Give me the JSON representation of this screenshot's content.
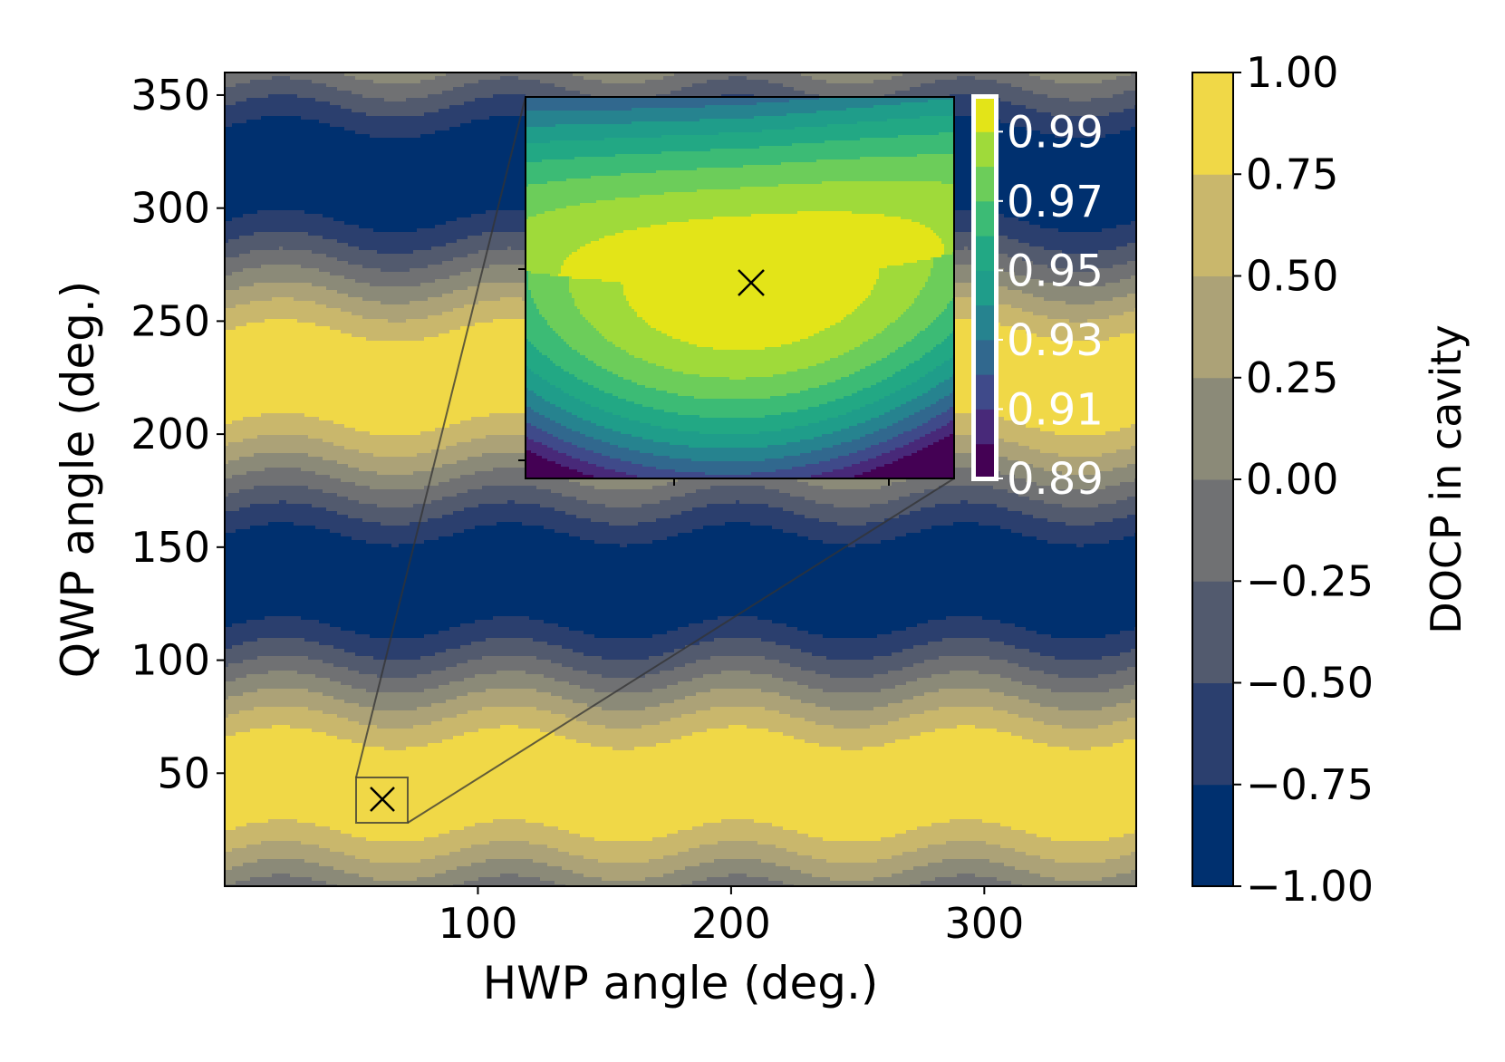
{
  "chart_data": [
    {
      "type": "heatmap",
      "subtype": "filled-contour",
      "xlabel": "HWP angle (deg.)",
      "ylabel": "QWP angle (deg.)",
      "xlim": [
        0,
        360
      ],
      "ylim": [
        0,
        360
      ],
      "xticks": [
        100,
        200,
        300
      ],
      "xtick_labels": [
        "100",
        "200",
        "300"
      ],
      "yticks": [
        50,
        100,
        150,
        200,
        250,
        300,
        350
      ],
      "ytick_labels": [
        "50",
        "100",
        "150",
        "200",
        "250",
        "300",
        "350"
      ],
      "function": "DOCP = sin(2 * QWP) modulated by HWP (period 90 deg.)",
      "levels": [
        -1.0,
        -0.75,
        -0.5,
        -0.25,
        0.0,
        0.25,
        0.5,
        0.75,
        1.0
      ],
      "colormap": "cividis",
      "colors": [
        "#00306f",
        "#2b3f6e",
        "#525a6e",
        "#707173",
        "#8b8a78",
        "#aca277",
        "#c9b76c",
        "#f0d847"
      ],
      "colorbar": {
        "label": "DOCP in cavity",
        "ticks": [
          1.0,
          0.75,
          0.5,
          0.25,
          0.0,
          -0.25,
          -0.5,
          -0.75,
          -1.0
        ],
        "tick_labels": [
          "1.00",
          "0.75",
          "0.50",
          "0.25",
          "0.00",
          "−0.25",
          "−0.50",
          "−0.75",
          "−1.00"
        ]
      },
      "marker": {
        "symbol": "x",
        "hwp": 62,
        "qwp": 38
      },
      "zoom_box": {
        "hwp_range": [
          52,
          72
        ],
        "qwp_range": [
          28,
          48
        ]
      }
    },
    {
      "type": "heatmap",
      "subtype": "filled-contour-inset",
      "description_region": "zoom of marked optimum",
      "levels": [
        0.89,
        0.9,
        0.91,
        0.92,
        0.93,
        0.94,
        0.95,
        0.96,
        0.97,
        0.98,
        0.99,
        1.0
      ],
      "colormap": "viridis",
      "colors": [
        "#440154",
        "#482979",
        "#3f4a8a",
        "#31688e",
        "#26838f",
        "#1f9d8a",
        "#22a884",
        "#3cbb75",
        "#6ccd5a",
        "#9fda3a",
        "#e3e418"
      ],
      "colorbar": {
        "ticks": [
          0.99,
          0.97,
          0.95,
          0.93,
          0.91,
          0.89
        ],
        "tick_labels": [
          "0.99",
          "0.97",
          "0.95",
          "0.93",
          "0.91",
          "0.89"
        ]
      },
      "marker": {
        "symbol": "x"
      }
    }
  ]
}
